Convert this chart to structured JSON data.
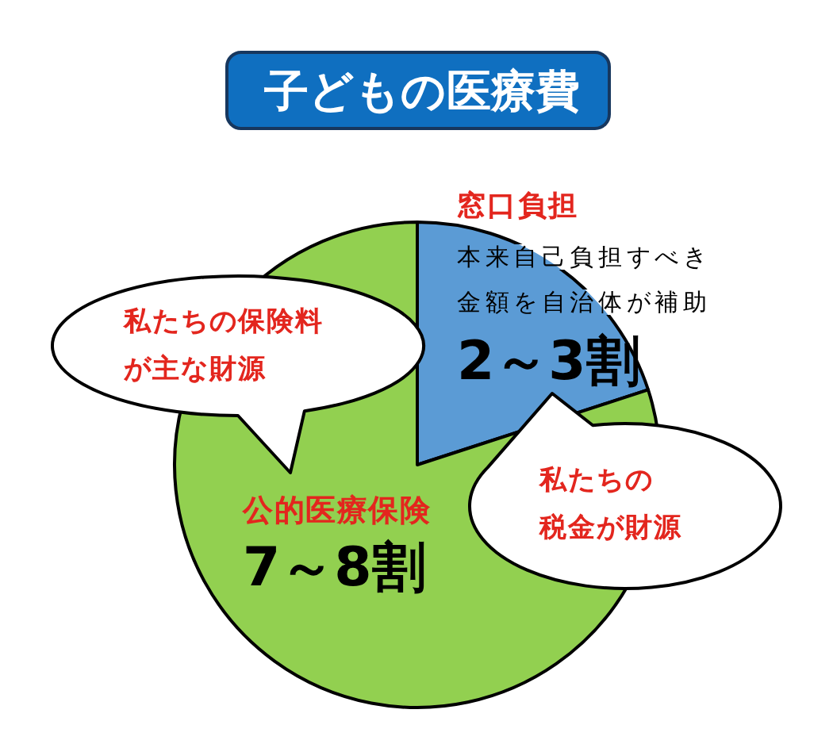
{
  "chart_data": {
    "type": "pie",
    "title": "子どもの医療費",
    "categories": [
      "窓口負担",
      "公的医療保険"
    ],
    "values": [
      2,
      8
    ],
    "colors": [
      "#5b9bd5",
      "#92d050"
    ],
    "value_labels": [
      "2～3割",
      "7～8割"
    ],
    "annotations": [
      "本来自己負担すべき金額を自治体が補助",
      "私たちの保険料が主な財源",
      "私たちの税金が財源"
    ]
  }
}
